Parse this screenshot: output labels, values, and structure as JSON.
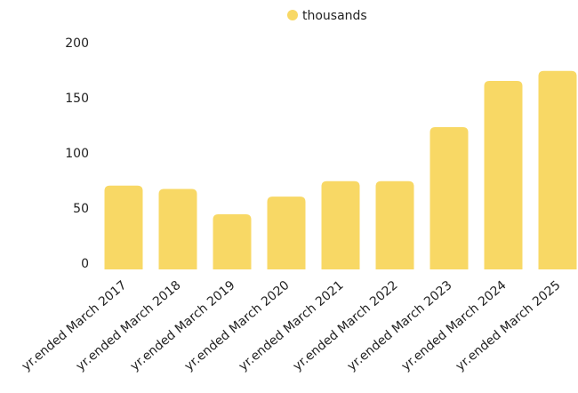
{
  "chart_data": {
    "type": "bar",
    "categories": [
      "yr.ended March 2017",
      "yr.ended March 2018",
      "yr.ended March 2019",
      "yr.ended March 2020",
      "yr.ended March 2021",
      "yr.ended March 2022",
      "yr.ended March 2023",
      "yr.ended March 2024",
      "yr.ended March 2025"
    ],
    "series": [
      {
        "name": "thousands",
        "values": [
          76,
          73,
          50,
          66,
          80,
          80,
          129,
          171,
          180
        ],
        "color": "#f8d865"
      }
    ],
    "yticks": [
      "0",
      "50",
      "100",
      "150",
      "200"
    ],
    "ylim": [
      0,
      200
    ],
    "title": "",
    "xlabel": "",
    "ylabel": "",
    "grid": false,
    "legend": "top-center"
  }
}
